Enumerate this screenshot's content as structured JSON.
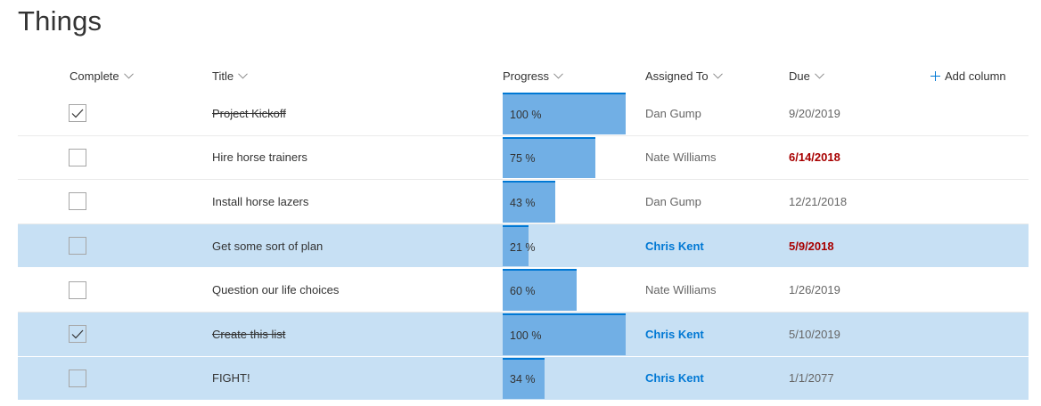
{
  "page": {
    "title": "Things"
  },
  "columns": {
    "complete": "Complete",
    "title": "Title",
    "progress": "Progress",
    "assigned_to": "Assigned To",
    "due": "Due",
    "add_column": "Add column"
  },
  "colors": {
    "progress_fill": "#71afe5",
    "progress_top": "#0078d4",
    "selected_row": "#c7e0f4",
    "assigned_me": "#0078d4",
    "overdue": "#a80000"
  },
  "rows": [
    {
      "complete": true,
      "title": "Project Kickoff",
      "progress": 100,
      "progress_label": "100 %",
      "assigned_to": "Dan Gump",
      "assigned_me": false,
      "due": "9/20/2019",
      "overdue": false,
      "selected": false
    },
    {
      "complete": false,
      "title": "Hire horse trainers",
      "progress": 75,
      "progress_label": "75 %",
      "assigned_to": "Nate Williams",
      "assigned_me": false,
      "due": "6/14/2018",
      "overdue": true,
      "selected": false
    },
    {
      "complete": false,
      "title": "Install horse lazers",
      "progress": 43,
      "progress_label": "43 %",
      "assigned_to": "Dan Gump",
      "assigned_me": false,
      "due": "12/21/2018",
      "overdue": false,
      "selected": false
    },
    {
      "complete": false,
      "title": "Get some sort of plan",
      "progress": 21,
      "progress_label": "21 %",
      "assigned_to": "Chris Kent",
      "assigned_me": true,
      "due": "5/9/2018",
      "overdue": true,
      "selected": true
    },
    {
      "complete": false,
      "title": "Question our life choices",
      "progress": 60,
      "progress_label": "60 %",
      "assigned_to": "Nate Williams",
      "assigned_me": false,
      "due": "1/26/2019",
      "overdue": false,
      "selected": false
    },
    {
      "complete": true,
      "title": "Create this list",
      "progress": 100,
      "progress_label": "100 %",
      "assigned_to": "Chris Kent",
      "assigned_me": true,
      "due": "5/10/2019",
      "overdue": false,
      "selected": true
    },
    {
      "complete": false,
      "title": "FIGHT!",
      "progress": 34,
      "progress_label": "34 %",
      "assigned_to": "Chris Kent",
      "assigned_me": true,
      "due": "1/1/2077",
      "overdue": false,
      "selected": true
    }
  ]
}
